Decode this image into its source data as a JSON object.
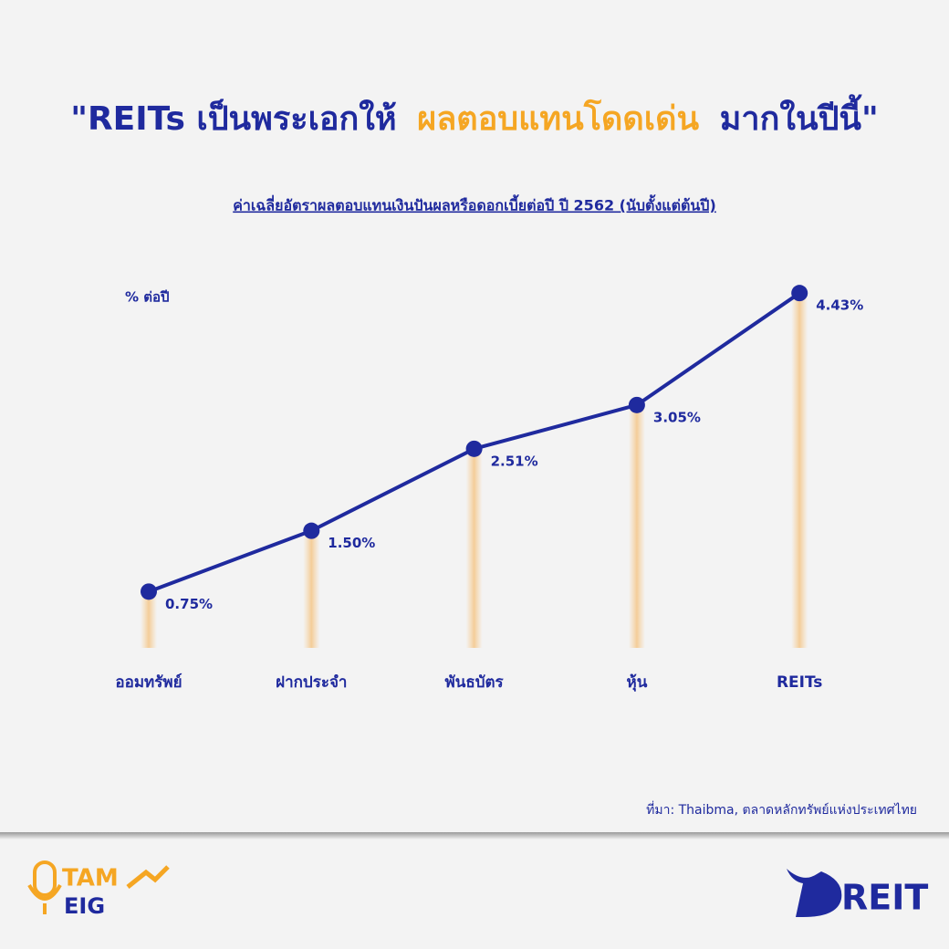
{
  "chart_data": {
    "type": "line",
    "title": [
      "\"REITs เป็นพระเอกให้",
      "ผลตอบแทนโดดเด่น",
      "มากในปีนี้\""
    ],
    "subtitle": "ค่าเฉลี่ยอัตราผลตอบแทนเงินปันผลหรือดอกเบี้ยต่อปี ปี 2562 (นับตั้งแต่ต้นปี)",
    "y_label": "% ต่อปี",
    "categories": [
      "ออมทรัพย์",
      "ฝากประจำ",
      "พันธบัตร",
      "หุ้น",
      "REITs"
    ],
    "values": [
      0.75,
      1.5,
      2.51,
      3.05,
      4.43
    ],
    "value_labels": [
      "0.75%",
      "1.50%",
      "2.51%",
      "3.05%",
      "4.43%"
    ],
    "color": "#1f2a9e",
    "source": "ที่มา: Thaibma, ตลาดหลักทรัพย์แห่งประเทศไทย",
    "logos": {
      "left": [
        "TAM",
        "EIG"
      ],
      "right": "REIT"
    }
  }
}
